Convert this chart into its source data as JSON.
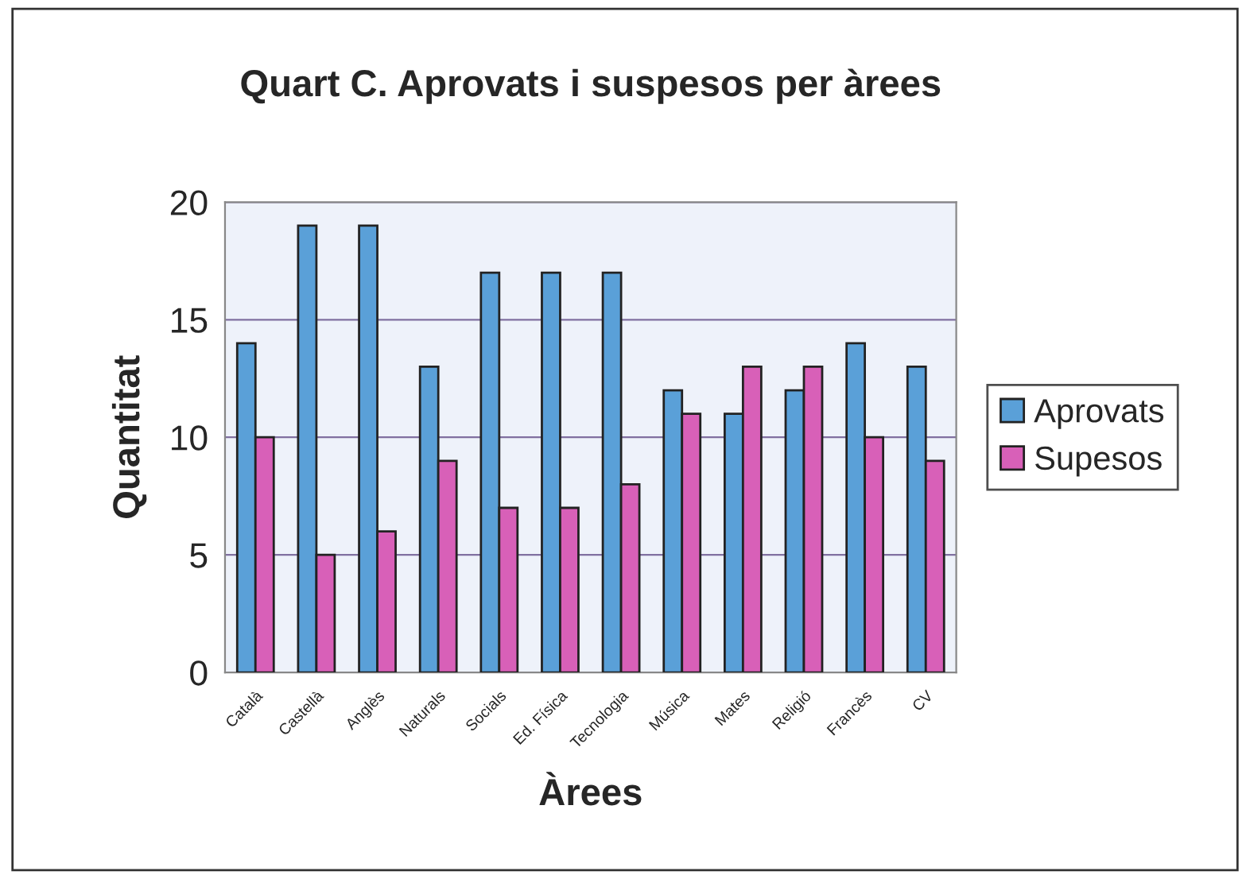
{
  "chart_data": {
    "type": "bar",
    "title": "Quart C. Aprovats i suspesos per àrees",
    "xlabel": "Àrees",
    "ylabel": "Quantitat",
    "categories": [
      "Català",
      "Castellà",
      "Anglès",
      "Naturals",
      "Socials",
      "Ed. Física",
      "Tecnologia",
      "Música",
      "Mates",
      "Religió",
      "Francès",
      "CV"
    ],
    "series": [
      {
        "name": "Aprovats",
        "color": "#5aa0d8",
        "values": [
          14,
          19,
          19,
          13,
          17,
          17,
          17,
          12,
          11,
          12,
          14,
          13
        ]
      },
      {
        "name": "Supesos",
        "color": "#d860b8",
        "values": [
          10,
          5,
          6,
          9,
          7,
          7,
          8,
          11,
          13,
          13,
          10,
          9
        ]
      }
    ],
    "ylim": [
      0,
      20
    ],
    "yticks": [
      0,
      5,
      10,
      15,
      20
    ],
    "grid": "y",
    "legend": "right"
  }
}
